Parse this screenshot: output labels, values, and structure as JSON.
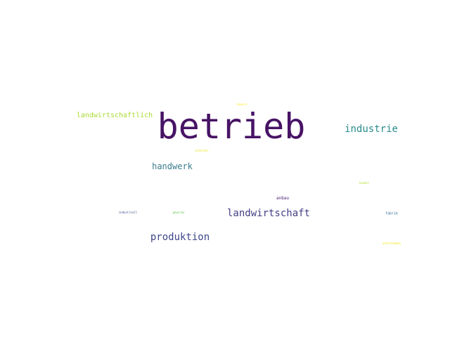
{
  "words": {
    "betrieb": {
      "text": "betrieb",
      "color": "#471365"
    },
    "industrie": {
      "text": "industrie",
      "color": "#2a8b8b"
    },
    "landwirtschaftlich": {
      "text": "landwirtschaftlich",
      "color": "#a8db34"
    },
    "handwerk": {
      "text": "handwerk",
      "color": "#3b7c8c"
    },
    "landwirtschaft": {
      "text": "landwirtschaft",
      "color": "#433e85"
    },
    "produktion": {
      "text": "produktion",
      "color": "#3f4889"
    },
    "anbau": {
      "text": "anbau",
      "color": "#482475"
    },
    "industriell": {
      "text": "industriell",
      "color": "#3e4a89"
    },
    "gewerbe": {
      "text": "gewerbe",
      "color": "#6ccd5a"
    },
    "fabrik": {
      "text": "fabrik",
      "color": "#2f6c8e"
    },
    "handel": {
      "text": "handel",
      "color": "#b5de2b"
    },
    "tiny1": {
      "text": "bauern",
      "color": "#fde725"
    },
    "tiny2": {
      "text": "arbeiter",
      "color": "#e5e419"
    },
    "tiny3": {
      "text": "unternehmen",
      "color": "#f3e91c"
    }
  }
}
